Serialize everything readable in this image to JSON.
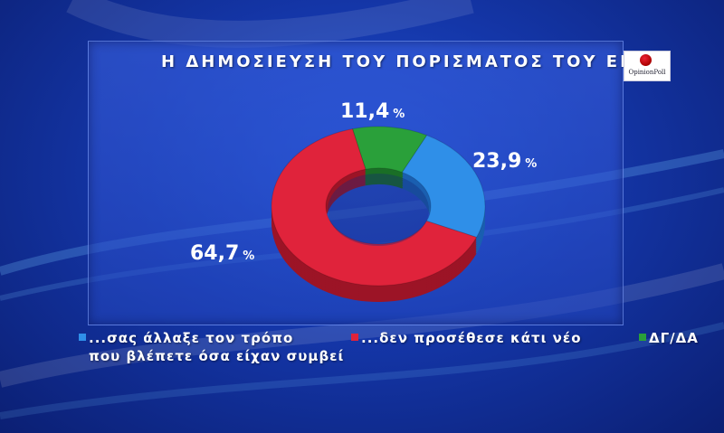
{
  "title": "Η ΔΗΜΟΣΙΕΥΣΗ ΤΟΥ ΠΟΡΙΣΜΑΤΟΣ ΤΟΥ ΕΜΠ",
  "logo_text": "OpinionPoll",
  "colors": {
    "blue": "#2f8fe8",
    "red": "#e0233b",
    "green": "#2aa03a"
  },
  "chart_data": {
    "type": "pie",
    "title": "Η ΔΗΜΟΣΙΕΥΣΗ ΤΟΥ ΠΟΡΙΣΜΑΤΟΣ ΤΟΥ ΕΜΠ",
    "categories": [
      "...σας άλλαξε τον τρόπο που βλέπετε όσα είχαν συμβεί",
      "...δεν προσέθεσε κάτι νέο",
      "ΔΓ/ΔΑ"
    ],
    "values": [
      23.9,
      64.7,
      11.4
    ],
    "labels": [
      "23,9",
      "64,7",
      "11,4"
    ],
    "unit": "%",
    "legend": "bottom"
  },
  "legend": {
    "blue_line1": "...σας άλλαξε τον τρόπο",
    "blue_line2": "που βλέπετε όσα είχαν συμβεί",
    "red": "...δεν προσέθεσε κάτι νέο",
    "green": "ΔΓ/ΔΑ"
  }
}
